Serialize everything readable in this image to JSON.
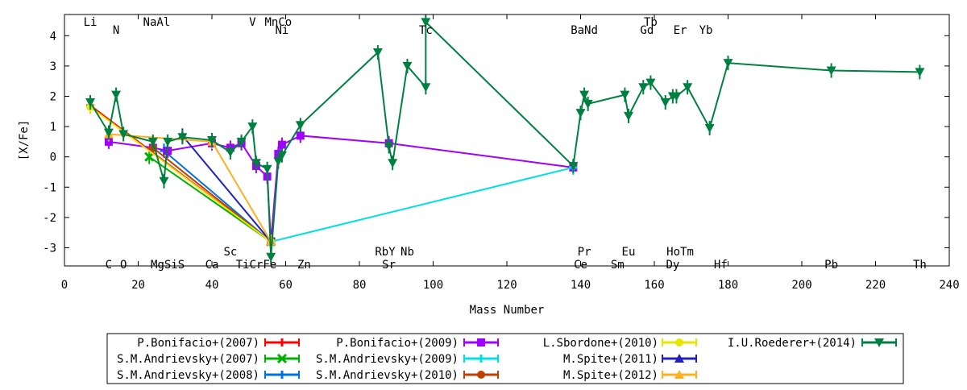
{
  "chart_data": {
    "type": "line",
    "title": "",
    "xlabel": "Mass Number",
    "ylabel": "[X/Fe]",
    "xlim": [
      0,
      240
    ],
    "ylim": [
      -3.6,
      4.7
    ],
    "x_ticks": [
      0,
      20,
      40,
      60,
      80,
      100,
      120,
      140,
      160,
      180,
      200,
      220,
      240
    ],
    "y_ticks": [
      -3,
      -2,
      -1,
      0,
      1,
      2,
      3,
      4
    ],
    "grid": false,
    "legend_position": "bottom",
    "top_element_labels": [
      {
        "label": "Li",
        "x": 7,
        "row": 0
      },
      {
        "label": "N",
        "x": 14,
        "row": 1
      },
      {
        "label": "NaAl",
        "x": 25,
        "row": 0
      },
      {
        "label": "V",
        "x": 51,
        "row": 0
      },
      {
        "label": "MnCo",
        "x": 58,
        "row": 0
      },
      {
        "label": "Ni",
        "x": 59,
        "row": 1
      },
      {
        "label": "Tc",
        "x": 98,
        "row": 1
      },
      {
        "label": "BaNd",
        "x": 141,
        "row": 1
      },
      {
        "label": "Tb",
        "x": 159,
        "row": 0
      },
      {
        "label": "Gd",
        "x": 158,
        "row": 1
      },
      {
        "label": "Er",
        "x": 167,
        "row": 1
      },
      {
        "label": "Yb",
        "x": 174,
        "row": 1
      }
    ],
    "bottom_element_labels": [
      {
        "label": "Sc",
        "x": 45,
        "row": 0
      },
      {
        "label": "RbY",
        "x": 87,
        "row": 0
      },
      {
        "label": "Nb",
        "x": 93,
        "row": 0
      },
      {
        "label": "Pr",
        "x": 141,
        "row": 0
      },
      {
        "label": "Eu",
        "x": 153,
        "row": 0
      },
      {
        "label": "HoTm",
        "x": 167,
        "row": 0
      },
      {
        "label": "C",
        "x": 12,
        "row": 1
      },
      {
        "label": "O",
        "x": 16,
        "row": 1
      },
      {
        "label": "MgSiS",
        "x": 28,
        "row": 1
      },
      {
        "label": "Ca",
        "x": 40,
        "row": 1
      },
      {
        "label": "TiCrFe",
        "x": 52,
        "row": 1
      },
      {
        "label": "Zn",
        "x": 65,
        "row": 1
      },
      {
        "label": "Sr",
        "x": 88,
        "row": 1
      },
      {
        "label": "Ce",
        "x": 140,
        "row": 1
      },
      {
        "label": "Sm",
        "x": 150,
        "row": 1
      },
      {
        "label": "Dy",
        "x": 165,
        "row": 1
      },
      {
        "label": "Hf",
        "x": 178,
        "row": 1
      },
      {
        "label": "Pb",
        "x": 208,
        "row": 1
      },
      {
        "label": "Th",
        "x": 232,
        "row": 1
      }
    ],
    "series": [
      {
        "name": "P.Bonifacio+(2007)",
        "color": "#ff0000",
        "marker": "plus",
        "x": [
          7,
          56
        ],
        "y": [
          1.7,
          -2.8
        ]
      },
      {
        "name": "S.M.Andrievsky+(2007)",
        "color": "#00b000",
        "marker": "x",
        "x": [
          23,
          56
        ],
        "y": [
          0.0,
          -2.8
        ]
      },
      {
        "name": "S.M.Andrievsky+(2008)",
        "color": "#0072e0",
        "marker": "plus",
        "x": [
          27,
          56
        ],
        "y": [
          0.2,
          -2.8
        ]
      },
      {
        "name": "P.Bonifacio+(2009)",
        "color": "#a000ff",
        "marker": "square",
        "x": [
          12,
          24,
          28,
          40,
          45,
          48,
          52,
          55,
          56,
          58,
          59,
          64,
          88,
          138
        ],
        "y": [
          0.5,
          0.3,
          0.2,
          0.45,
          0.3,
          0.45,
          -0.3,
          -0.65,
          -2.8,
          0.1,
          0.4,
          0.7,
          0.45,
          -0.35
        ]
      },
      {
        "name": "S.M.Andrievsky+(2009)",
        "color": "#00e0e0",
        "marker": "plus",
        "x": [
          56,
          138
        ],
        "y": [
          -2.8,
          -0.35
        ]
      },
      {
        "name": "S.M.Andrievsky+(2010)",
        "color": "#c04000",
        "marker": "dot",
        "x": [
          24,
          56
        ],
        "y": [
          0.3,
          -2.8
        ]
      },
      {
        "name": "L.Sbordone+(2010)",
        "color": "#e6e600",
        "marker": "circle",
        "x": [
          7,
          56
        ],
        "y": [
          1.65,
          -2.8
        ]
      },
      {
        "name": "M.Spite+(2011)",
        "color": "#2020c0",
        "marker": "triangle",
        "x": [
          32,
          56
        ],
        "y": [
          0.7,
          -2.8
        ]
      },
      {
        "name": "M.Spite+(2012)",
        "color": "#ffb020",
        "marker": "triangle",
        "x": [
          12,
          40,
          56
        ],
        "y": [
          0.75,
          0.5,
          -2.8
        ]
      },
      {
        "name": "I.U.Roederer+(2014)",
        "color": "#008040",
        "marker": "triangle-down",
        "x": [
          7,
          12,
          14,
          16,
          24,
          27,
          28,
          32,
          40,
          45,
          48,
          51,
          52,
          55,
          56,
          58,
          59,
          64,
          85,
          88,
          89,
          93,
          98,
          98,
          138,
          140,
          141,
          142,
          152,
          153,
          157,
          159,
          163,
          165,
          166,
          169,
          175,
          180,
          208,
          232
        ],
        "y": [
          1.8,
          0.8,
          2.05,
          0.75,
          0.5,
          -0.8,
          0.5,
          0.65,
          0.55,
          0.15,
          0.5,
          1.0,
          -0.2,
          -0.4,
          -3.3,
          -0.15,
          0.05,
          1.05,
          3.45,
          0.35,
          -0.2,
          3.0,
          2.3,
          4.45,
          -0.3,
          1.45,
          2.05,
          1.75,
          2.05,
          1.35,
          2.3,
          2.45,
          1.8,
          2.0,
          2.0,
          2.3,
          0.95,
          3.1,
          2.85,
          2.8
        ]
      }
    ]
  }
}
